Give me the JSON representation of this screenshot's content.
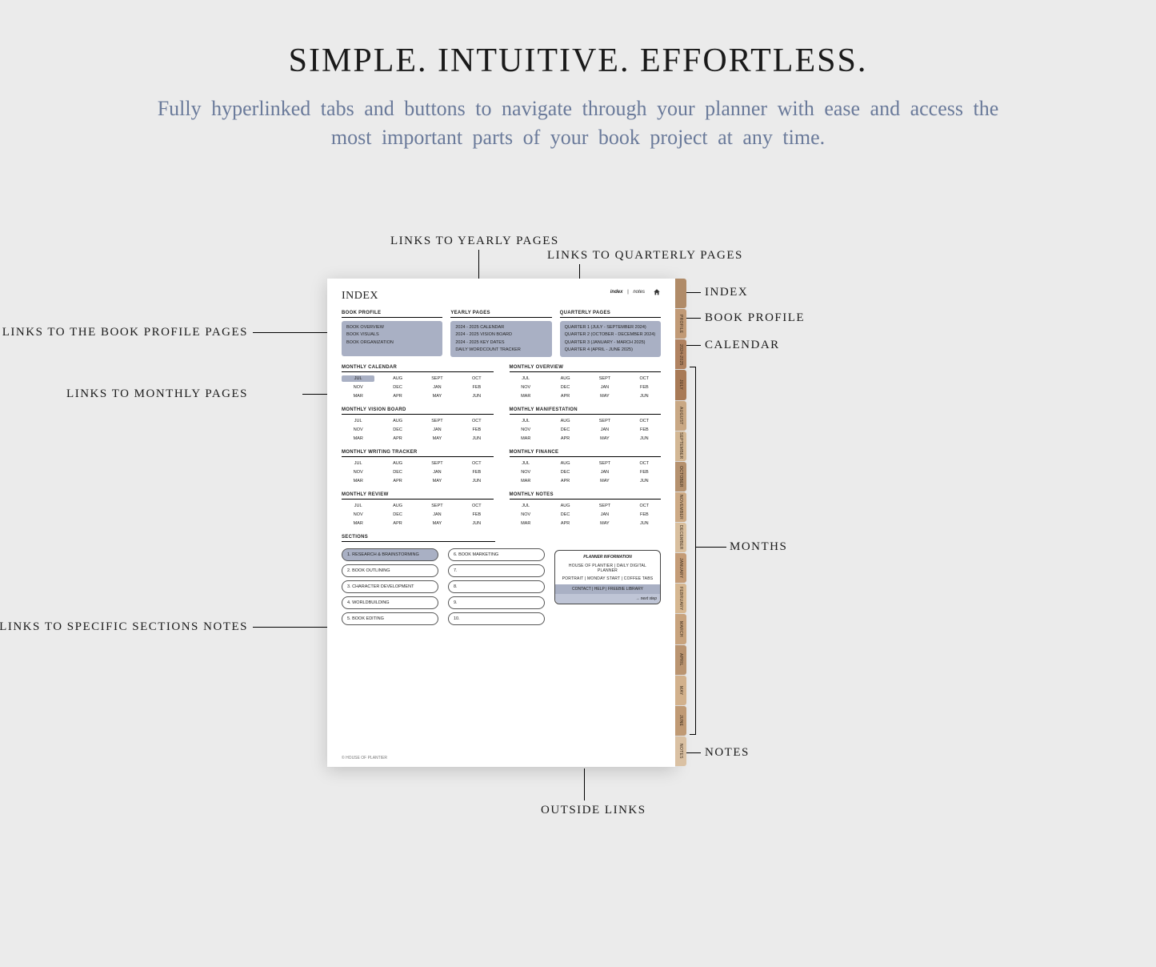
{
  "headline": "SIMPLE. INTUITIVE. EFFORTLESS.",
  "subhead": "Fully hyperlinked tabs and buttons to navigate through your planner with ease and access the most important parts of your book project at any time.",
  "callouts": {
    "yearly": "LINKS TO YEARLY PAGES",
    "quarterly": "LINKS TO QUARTERLY PAGES",
    "profile": "LINKS TO THE BOOK PROFILE PAGES",
    "monthly": "LINKS TO MONTHLY PAGES",
    "sections": "LINKS TO SPECIFIC SECTIONS NOTES",
    "outside": "OUTSIDE LINKS",
    "r_index": "INDEX",
    "r_profile": "BOOK PROFILE",
    "r_calendar": "CALENDAR",
    "r_months": "MONTHS",
    "r_notes": "NOTES"
  },
  "page": {
    "title": "INDEX",
    "toplinks": {
      "a": "index",
      "b": "notes"
    },
    "top": {
      "c1_h": "BOOK PROFILE",
      "c1": [
        "BOOK OVERVIEW",
        "BOOK VISUALS",
        "BOOK ORGANIZATION"
      ],
      "c2_h": "YEARLY PAGES",
      "c2": [
        "2024 - 2025 CALENDAR",
        "2024 - 2025 VISION BOARD",
        "2024 - 2025 KEY DATES",
        "DAILY WORDCOUNT TRACKER"
      ],
      "c3_h": "QUARTERLY PAGES",
      "c3": [
        "QUARTER 1 (JULY - SEPTEMBER 2024)",
        "QUARTER 2 (OCTOBER - DECEMBER 2024)",
        "QUARTER 3 (JANUARY - MARCH 2025)",
        "QUARTER 4 (APRIL - JUNE 2025)"
      ]
    },
    "months": [
      "JUL",
      "AUG",
      "SEPT",
      "OCT",
      "NOV",
      "DEC",
      "JAN",
      "FEB",
      "MAR",
      "APR",
      "MAY",
      "JUN"
    ],
    "grids": [
      {
        "l": "MONTHLY CALENDAR",
        "r": "MONTHLY OVERVIEW",
        "hl": true
      },
      {
        "l": "MONTHLY VISION BOARD",
        "r": "MONTHLY MANIFESTATION"
      },
      {
        "l": "MONTHLY WRITING TRACKER",
        "r": "MONTHLY FINANCE"
      },
      {
        "l": "MONTHLY REVIEW",
        "r": "MONTHLY NOTES"
      }
    ],
    "sections_h": "SECTIONS",
    "sections_l": [
      "1.   RESEARCH & BRAINSTORMING",
      "2.   BOOK OUTLINING",
      "3.   CHARACTER DEVELOPMENT",
      "4.   WORLDBUILDING",
      "5.   BOOK EDITING"
    ],
    "sections_r": [
      "6.   BOOK MARKETING",
      "7.",
      "8.",
      "9.",
      "10."
    ],
    "info": {
      "h": "PLANNER INFORMATION",
      "r1": "HOUSE OF PLANTIER   |   DAILY DIGITAL PLANNER",
      "r2": "PORTRAIT   |   MONDAY START   |   COFFEE TABS",
      "btn": "CONTACT   |   HELP   |   FREEBIE LIBRARY",
      "next": "→  next step"
    },
    "footer": "© HOUSE OF PLANTIER"
  },
  "tabs": [
    {
      "label": "",
      "color": "#b08b68"
    },
    {
      "label": "PROFILE",
      "color": "#c19a76"
    },
    {
      "label": "2024-2025",
      "color": "#b08260"
    },
    {
      "label": "JULY",
      "color": "#a87a56"
    },
    {
      "label": "AUGUST",
      "color": "#c9a884"
    },
    {
      "label": "SEPTEMBER",
      "color": "#d3b794"
    },
    {
      "label": "OCTOBER",
      "color": "#b5916e"
    },
    {
      "label": "NOVEMBER",
      "color": "#cdaa85"
    },
    {
      "label": "DECEMBER",
      "color": "#d9bf9e"
    },
    {
      "label": "JANUARY",
      "color": "#c49c77"
    },
    {
      "label": "FEBRUARY",
      "color": "#d6b791"
    },
    {
      "label": "MARCH",
      "color": "#c8a37d"
    },
    {
      "label": "APRIL",
      "color": "#ba9470"
    },
    {
      "label": "MAY",
      "color": "#d2b18c"
    },
    {
      "label": "JUNE",
      "color": "#c09a74"
    },
    {
      "label": "NOTES",
      "color": "#dac1a3"
    }
  ],
  "colors": {
    "pill": "#a9b0c4"
  }
}
